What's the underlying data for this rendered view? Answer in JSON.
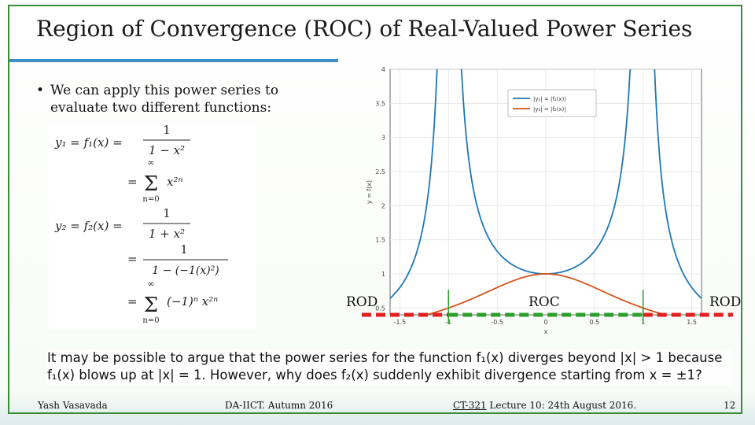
{
  "slide": {
    "title": "Region of Convergence (ROC) of Real-Valued Power Series",
    "bullet_marker": "•",
    "bullet_text": "We can apply this power series to evaluate two different functions:",
    "equations": {
      "y1_lhs": "y₁ = f₁(x) =",
      "y1_frac_num": "1",
      "y1_frac_den": "1 − x²",
      "eq1": "=",
      "sum_sym": "∞",
      "sigma": "Σ",
      "n0": "n=0",
      "x2n": "x²ⁿ",
      "y2_lhs": "y₂ = f₂(x) =",
      "y2_frac_num": "1",
      "y2_frac_den": "1 + x²",
      "eq2": "=",
      "y2b_frac_num": "1",
      "y2b_frac_den": "1 − (−1(x)²)",
      "eq3": "=",
      "alt_term": "(−1)ⁿ x²ⁿ"
    },
    "bottom_text_line1": "It may be possible to argue that the power series for the function f₁(x) diverges beyond |x| > 1  because",
    "bottom_text_line2": "f₁(x) blows up at |x| = 1. However, why does f₂(x) suddenly exhibit divergence starting from x = ±1?",
    "labels": {
      "rod_left": "ROD",
      "roc": "ROC",
      "rod_right": "ROD"
    }
  },
  "footer": {
    "author": "Yash Vasavada",
    "course": "DA-IICT.  Autumn 2016",
    "lecture_code": "CT-321",
    "lecture_info": " Lecture 10:  24th August 2016.",
    "page_number": "12"
  },
  "chart_data": {
    "type": "line",
    "xlabel": "x",
    "ylabel": "y = f(x)",
    "xlim": [
      -1.6,
      1.6
    ],
    "ylim": [
      0.4,
      4
    ],
    "xticks": [
      "-1.5",
      "-1",
      "-0.5",
      "0",
      "0.5",
      "1",
      "1.5"
    ],
    "yticks": [
      "0.5",
      "1",
      "1.5",
      "2",
      "2.5",
      "3",
      "3.5",
      "4"
    ],
    "grid": true,
    "legend_position": "top-right",
    "series": [
      {
        "name": "|y₁| = |f₁(x)|",
        "color": "#1f77b4",
        "function": "1/|1-x^2|"
      },
      {
        "name": "|y₂| = |f₂(x)|",
        "color": "#d95319",
        "function": "1/(1+x^2)"
      }
    ],
    "annotations": {
      "roc_bounds_x": [
        -1,
        1
      ],
      "roc_color": "#2ca02c",
      "rod_color": "#e02020"
    }
  }
}
